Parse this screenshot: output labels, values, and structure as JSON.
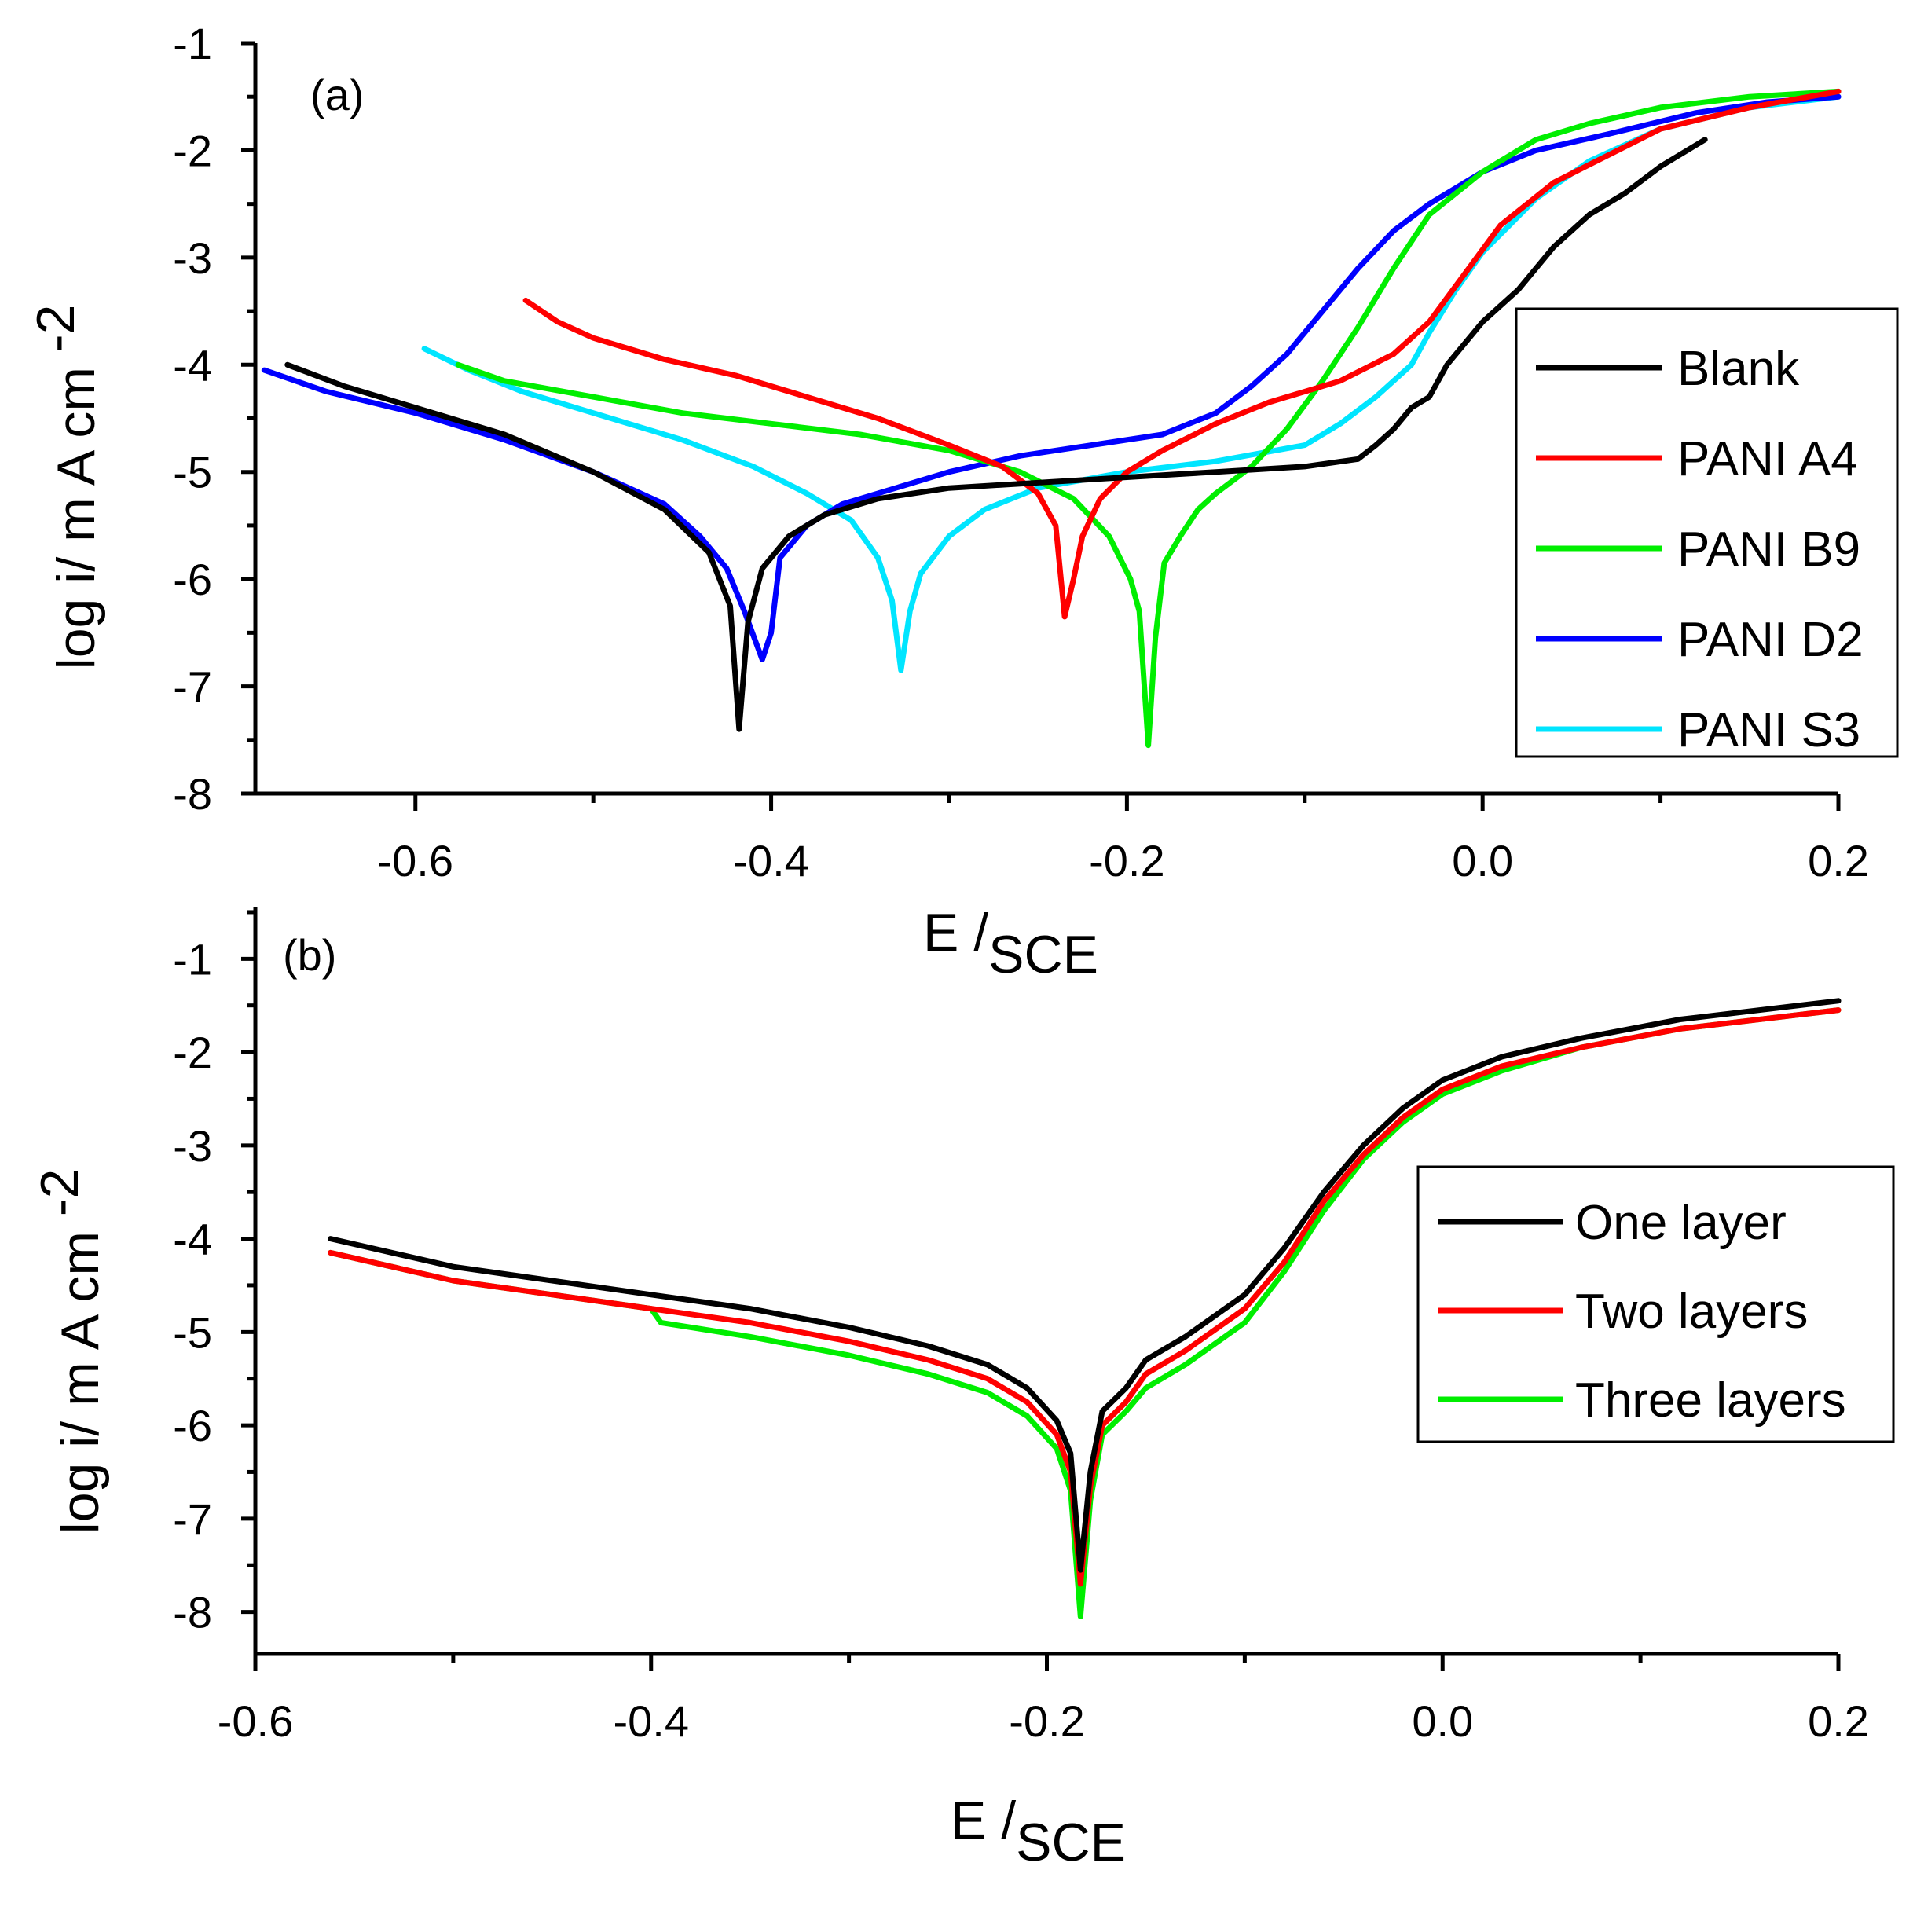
{
  "chart_data": [
    {
      "type": "line",
      "panel_label": "(a)",
      "xlabel_main": "E /",
      "xlabel_sub": "SCE",
      "ylabel": "log i/ m A cm",
      "ylabel_sup": "-2",
      "xlim": [
        -0.69,
        0.2
      ],
      "ylim": [
        -8,
        -1
      ],
      "xticks": [
        "-0.6",
        "-0.4",
        "-0.2",
        "0.0",
        "0.2"
      ],
      "xtick_values": [
        -0.6,
        -0.4,
        -0.2,
        0.0,
        0.2
      ],
      "yticks": [
        "-1",
        "-2",
        "-3",
        "-4",
        "-5",
        "-6",
        "-7",
        "-8"
      ],
      "ytick_values": [
        -1,
        -2,
        -3,
        -4,
        -5,
        -6,
        -7,
        -8
      ],
      "legend_position": "right",
      "series": [
        {
          "name": "Blank",
          "color": "#000000",
          "points": [
            [
              -0.672,
              -4.0
            ],
            [
              -0.64,
              -4.2
            ],
            [
              -0.6,
              -4.4
            ],
            [
              -0.55,
              -4.65
            ],
            [
              -0.5,
              -5.0
            ],
            [
              -0.46,
              -5.35
            ],
            [
              -0.435,
              -5.75
            ],
            [
              -0.423,
              -6.25
            ],
            [
              -0.418,
              -7.4
            ],
            [
              -0.413,
              -6.4
            ],
            [
              -0.405,
              -5.9
            ],
            [
              -0.39,
              -5.6
            ],
            [
              -0.37,
              -5.4
            ],
            [
              -0.34,
              -5.25
            ],
            [
              -0.3,
              -5.15
            ],
            [
              -0.25,
              -5.1
            ],
            [
              -0.2,
              -5.05
            ],
            [
              -0.15,
              -5.0
            ],
            [
              -0.1,
              -4.95
            ],
            [
              -0.07,
              -4.88
            ],
            [
              -0.06,
              -4.75
            ],
            [
              -0.05,
              -4.6
            ],
            [
              -0.04,
              -4.4
            ],
            [
              -0.03,
              -4.3
            ],
            [
              -0.02,
              -4.0
            ],
            [
              0.0,
              -3.6
            ],
            [
              0.02,
              -3.3
            ],
            [
              0.04,
              -2.9
            ],
            [
              0.06,
              -2.6
            ],
            [
              0.08,
              -2.4
            ],
            [
              0.1,
              -2.15
            ],
            [
              0.125,
              -1.9
            ]
          ]
        },
        {
          "name": "PANI A4",
          "color": "#ff0000",
          "points": [
            [
              -0.538,
              -3.4
            ],
            [
              -0.52,
              -3.6
            ],
            [
              -0.5,
              -3.75
            ],
            [
              -0.46,
              -3.95
            ],
            [
              -0.42,
              -4.1
            ],
            [
              -0.38,
              -4.3
            ],
            [
              -0.34,
              -4.5
            ],
            [
              -0.3,
              -4.75
            ],
            [
              -0.27,
              -4.95
            ],
            [
              -0.25,
              -5.2
            ],
            [
              -0.24,
              -5.5
            ],
            [
              -0.235,
              -6.35
            ],
            [
              -0.23,
              -6.0
            ],
            [
              -0.225,
              -5.6
            ],
            [
              -0.215,
              -5.25
            ],
            [
              -0.2,
              -5.0
            ],
            [
              -0.18,
              -4.8
            ],
            [
              -0.15,
              -4.55
            ],
            [
              -0.12,
              -4.35
            ],
            [
              -0.08,
              -4.15
            ],
            [
              -0.05,
              -3.9
            ],
            [
              -0.03,
              -3.6
            ],
            [
              -0.01,
              -3.15
            ],
            [
              0.01,
              -2.7
            ],
            [
              0.04,
              -2.3
            ],
            [
              0.07,
              -2.05
            ],
            [
              0.1,
              -1.8
            ],
            [
              0.15,
              -1.6
            ],
            [
              0.2,
              -1.45
            ]
          ]
        },
        {
          "name": "PANI B9",
          "color": "#00ee00",
          "points": [
            [
              -0.576,
              -4.0
            ],
            [
              -0.55,
              -4.15
            ],
            [
              -0.5,
              -4.3
            ],
            [
              -0.45,
              -4.45
            ],
            [
              -0.4,
              -4.55
            ],
            [
              -0.35,
              -4.65
            ],
            [
              -0.3,
              -4.8
            ],
            [
              -0.26,
              -5.0
            ],
            [
              -0.23,
              -5.25
            ],
            [
              -0.21,
              -5.6
            ],
            [
              -0.198,
              -6.0
            ],
            [
              -0.193,
              -6.3
            ],
            [
              -0.188,
              -7.55
            ],
            [
              -0.184,
              -6.55
            ],
            [
              -0.179,
              -5.85
            ],
            [
              -0.17,
              -5.6
            ],
            [
              -0.16,
              -5.35
            ],
            [
              -0.15,
              -5.2
            ],
            [
              -0.13,
              -4.95
            ],
            [
              -0.11,
              -4.6
            ],
            [
              -0.09,
              -4.15
            ],
            [
              -0.07,
              -3.65
            ],
            [
              -0.05,
              -3.1
            ],
            [
              -0.03,
              -2.6
            ],
            [
              0.0,
              -2.2
            ],
            [
              0.03,
              -1.9
            ],
            [
              0.06,
              -1.75
            ],
            [
              0.1,
              -1.6
            ],
            [
              0.15,
              -1.5
            ],
            [
              0.2,
              -1.45
            ]
          ]
        },
        {
          "name": "PANI D2",
          "color": "#0000ff",
          "points": [
            [
              -0.685,
              -4.05
            ],
            [
              -0.65,
              -4.25
            ],
            [
              -0.6,
              -4.45
            ],
            [
              -0.55,
              -4.7
            ],
            [
              -0.5,
              -5.0
            ],
            [
              -0.46,
              -5.3
            ],
            [
              -0.44,
              -5.6
            ],
            [
              -0.425,
              -5.9
            ],
            [
              -0.415,
              -6.3
            ],
            [
              -0.405,
              -6.75
            ],
            [
              -0.4,
              -6.5
            ],
            [
              -0.395,
              -5.8
            ],
            [
              -0.38,
              -5.5
            ],
            [
              -0.36,
              -5.3
            ],
            [
              -0.33,
              -5.15
            ],
            [
              -0.3,
              -5.0
            ],
            [
              -0.26,
              -4.85
            ],
            [
              -0.22,
              -4.75
            ],
            [
              -0.18,
              -4.65
            ],
            [
              -0.15,
              -4.45
            ],
            [
              -0.13,
              -4.2
            ],
            [
              -0.11,
              -3.9
            ],
            [
              -0.09,
              -3.5
            ],
            [
              -0.07,
              -3.1
            ],
            [
              -0.05,
              -2.75
            ],
            [
              -0.03,
              -2.5
            ],
            [
              0.0,
              -2.2
            ],
            [
              0.03,
              -2.0
            ],
            [
              0.07,
              -1.85
            ],
            [
              0.12,
              -1.65
            ],
            [
              0.16,
              -1.55
            ],
            [
              0.2,
              -1.5
            ]
          ]
        },
        {
          "name": "PANI S3",
          "color": "#00e5ff",
          "points": [
            [
              -0.595,
              -3.85
            ],
            [
              -0.57,
              -4.05
            ],
            [
              -0.54,
              -4.25
            ],
            [
              -0.5,
              -4.45
            ],
            [
              -0.45,
              -4.7
            ],
            [
              -0.41,
              -4.95
            ],
            [
              -0.38,
              -5.2
            ],
            [
              -0.355,
              -5.45
            ],
            [
              -0.34,
              -5.8
            ],
            [
              -0.332,
              -6.2
            ],
            [
              -0.327,
              -6.85
            ],
            [
              -0.322,
              -6.3
            ],
            [
              -0.316,
              -5.95
            ],
            [
              -0.3,
              -5.6
            ],
            [
              -0.28,
              -5.35
            ],
            [
              -0.25,
              -5.15
            ],
            [
              -0.2,
              -5.0
            ],
            [
              -0.15,
              -4.9
            ],
            [
              -0.1,
              -4.75
            ],
            [
              -0.08,
              -4.55
            ],
            [
              -0.06,
              -4.3
            ],
            [
              -0.04,
              -4.0
            ],
            [
              -0.03,
              -3.7
            ],
            [
              -0.015,
              -3.3
            ],
            [
              0.0,
              -2.95
            ],
            [
              0.03,
              -2.45
            ],
            [
              0.06,
              -2.1
            ],
            [
              0.1,
              -1.8
            ],
            [
              0.15,
              -1.6
            ],
            [
              0.2,
              -1.5
            ]
          ]
        }
      ]
    },
    {
      "type": "line",
      "panel_label": "(b)",
      "xlabel_main": "E /",
      "xlabel_sub": "SCE",
      "ylabel": "log i/ m A cm",
      "ylabel_sup": "-2",
      "xlim": [
        -0.6,
        0.2
      ],
      "ylim": [
        -8.45,
        -0.45
      ],
      "xticks": [
        "-0.6",
        "-0.4",
        "-0.2",
        "0.0",
        "0.2"
      ],
      "xtick_values": [
        -0.6,
        -0.4,
        -0.2,
        0.0,
        0.2
      ],
      "yticks": [
        "-1",
        "-2",
        "-3",
        "-4",
        "-5",
        "-6",
        "-7",
        "-8"
      ],
      "ytick_values": [
        -1,
        -2,
        -3,
        -4,
        -5,
        -6,
        -7,
        -8
      ],
      "legend_position": "right",
      "series": [
        {
          "name": "One layer",
          "color": "#000000",
          "points": [
            [
              -0.562,
              -4.0
            ],
            [
              -0.5,
              -4.3
            ],
            [
              -0.45,
              -4.45
            ],
            [
              -0.4,
              -4.6
            ],
            [
              -0.35,
              -4.75
            ],
            [
              -0.3,
              -4.95
            ],
            [
              -0.26,
              -5.15
            ],
            [
              -0.23,
              -5.35
            ],
            [
              -0.21,
              -5.6
            ],
            [
              -0.195,
              -5.95
            ],
            [
              -0.188,
              -6.3
            ],
            [
              -0.183,
              -7.55
            ],
            [
              -0.178,
              -6.5
            ],
            [
              -0.172,
              -5.85
            ],
            [
              -0.16,
              -5.6
            ],
            [
              -0.15,
              -5.3
            ],
            [
              -0.13,
              -5.05
            ],
            [
              -0.1,
              -4.6
            ],
            [
              -0.08,
              -4.1
            ],
            [
              -0.06,
              -3.5
            ],
            [
              -0.04,
              -3.0
            ],
            [
              -0.02,
              -2.6
            ],
            [
              0.0,
              -2.3
            ],
            [
              0.03,
              -2.05
            ],
            [
              0.07,
              -1.85
            ],
            [
              0.12,
              -1.65
            ],
            [
              0.2,
              -1.45
            ]
          ]
        },
        {
          "name": "Two layers",
          "color": "#ff0000",
          "points": [
            [
              -0.562,
              -4.15
            ],
            [
              -0.5,
              -4.45
            ],
            [
              -0.45,
              -4.6
            ],
            [
              -0.4,
              -4.75
            ],
            [
              -0.35,
              -4.9
            ],
            [
              -0.3,
              -5.1
            ],
            [
              -0.26,
              -5.3
            ],
            [
              -0.23,
              -5.5
            ],
            [
              -0.21,
              -5.75
            ],
            [
              -0.195,
              -6.1
            ],
            [
              -0.188,
              -6.5
            ],
            [
              -0.183,
              -7.7
            ],
            [
              -0.178,
              -6.65
            ],
            [
              -0.172,
              -6.0
            ],
            [
              -0.16,
              -5.75
            ],
            [
              -0.15,
              -5.45
            ],
            [
              -0.13,
              -5.2
            ],
            [
              -0.1,
              -4.75
            ],
            [
              -0.08,
              -4.25
            ],
            [
              -0.06,
              -3.6
            ],
            [
              -0.04,
              -3.1
            ],
            [
              -0.02,
              -2.7
            ],
            [
              0.0,
              -2.4
            ],
            [
              0.03,
              -2.15
            ],
            [
              0.07,
              -1.95
            ],
            [
              0.12,
              -1.75
            ],
            [
              0.2,
              -1.55
            ]
          ]
        },
        {
          "name": "Three layers",
          "color": "#00ee00",
          "points": [
            [
              -0.562,
              -4.15
            ],
            [
              -0.5,
              -4.45
            ],
            [
              -0.45,
              -4.6
            ],
            [
              -0.4,
              -4.75
            ],
            [
              -0.395,
              -4.9
            ],
            [
              -0.35,
              -5.05
            ],
            [
              -0.3,
              -5.25
            ],
            [
              -0.26,
              -5.45
            ],
            [
              -0.23,
              -5.65
            ],
            [
              -0.21,
              -5.9
            ],
            [
              -0.195,
              -6.25
            ],
            [
              -0.188,
              -6.7
            ],
            [
              -0.183,
              -8.05
            ],
            [
              -0.178,
              -6.8
            ],
            [
              -0.172,
              -6.1
            ],
            [
              -0.16,
              -5.85
            ],
            [
              -0.15,
              -5.6
            ],
            [
              -0.13,
              -5.35
            ],
            [
              -0.1,
              -4.9
            ],
            [
              -0.08,
              -4.35
            ],
            [
              -0.06,
              -3.7
            ],
            [
              -0.04,
              -3.15
            ],
            [
              -0.02,
              -2.75
            ],
            [
              0.0,
              -2.45
            ],
            [
              0.03,
              -2.2
            ],
            [
              0.07,
              -1.95
            ],
            [
              0.12,
              -1.75
            ],
            [
              0.2,
              -1.55
            ]
          ]
        }
      ]
    }
  ]
}
